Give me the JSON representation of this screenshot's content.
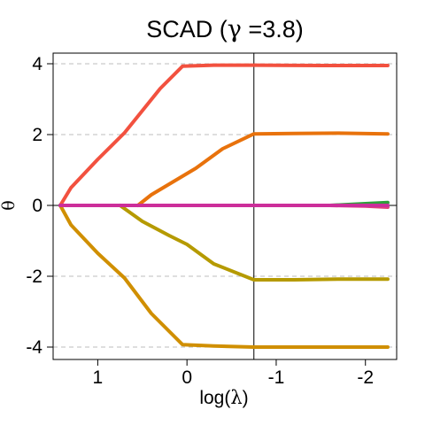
{
  "chart_data": {
    "type": "line",
    "title": {
      "prefix": "SCAD  (",
      "greek": "γ",
      "suffix": " =3.8)"
    },
    "xlabel": {
      "prefix": "log(",
      "greek": "λ",
      "suffix": ")"
    },
    "ylabel": "θ",
    "x_reversed": true,
    "xlim": [
      1.5,
      -2.35
    ],
    "ylim": [
      -4.35,
      4.3
    ],
    "x_ticks": [
      1,
      0,
      -1,
      -2
    ],
    "x_tick_labels": [
      "1",
      "0",
      "-1",
      "-2"
    ],
    "y_ticks": [
      -4,
      -2,
      0,
      2,
      4
    ],
    "y_tick_labels": [
      "-4",
      "-2",
      "0",
      "2",
      "4"
    ],
    "grid": "horizontal dashed at y ticks",
    "vline_x": -0.75,
    "hline_y": 0,
    "series": [
      {
        "color": "#F2513F",
        "x": [
          1.42,
          1.3,
          1.0,
          0.7,
          0.3,
          0.05,
          -0.3,
          -0.75,
          -1.5,
          -2.25
        ],
        "y": [
          0.0,
          0.5,
          1.3,
          2.05,
          3.3,
          3.93,
          3.96,
          3.96,
          3.95,
          3.95
        ]
      },
      {
        "color": "#E8720C",
        "x": [
          0.55,
          0.4,
          0.1,
          -0.1,
          -0.4,
          -0.75,
          -1.2,
          -1.7,
          -2.25
        ],
        "y": [
          0.0,
          0.3,
          0.75,
          1.05,
          1.6,
          2.02,
          2.03,
          2.04,
          2.02
        ]
      },
      {
        "color": "#B59A00",
        "x": [
          0.75,
          0.5,
          0.2,
          0.0,
          -0.3,
          -0.75,
          -1.2,
          -1.7,
          -2.25
        ],
        "y": [
          0.0,
          -0.45,
          -0.85,
          -1.1,
          -1.65,
          -2.1,
          -2.1,
          -2.08,
          -2.08
        ]
      },
      {
        "color": "#D08F00",
        "x": [
          1.42,
          1.3,
          1.0,
          0.7,
          0.4,
          0.05,
          -0.3,
          -0.75,
          -1.5,
          -2.25
        ],
        "y": [
          0.0,
          -0.55,
          -1.35,
          -2.05,
          -3.05,
          -3.93,
          -3.97,
          -4.0,
          -4.0,
          -4.0
        ]
      },
      {
        "color": "#2E9E3A",
        "x": [
          1.42,
          -1.6,
          -2.0,
          -2.25
        ],
        "y": [
          0.0,
          0.0,
          0.05,
          0.08
        ]
      },
      {
        "color": "#E0407A",
        "x": [
          1.42,
          -1.6,
          -2.0,
          -2.25
        ],
        "y": [
          0.0,
          0.0,
          -0.02,
          -0.05
        ]
      },
      {
        "color": "#7B4FB0",
        "x": [
          1.42,
          -2.25
        ],
        "y": [
          0.0,
          0.0
        ]
      },
      {
        "color": "#CC2E9A",
        "x": [
          1.42,
          -2.25
        ],
        "y": [
          0.0,
          0.0
        ]
      }
    ]
  }
}
